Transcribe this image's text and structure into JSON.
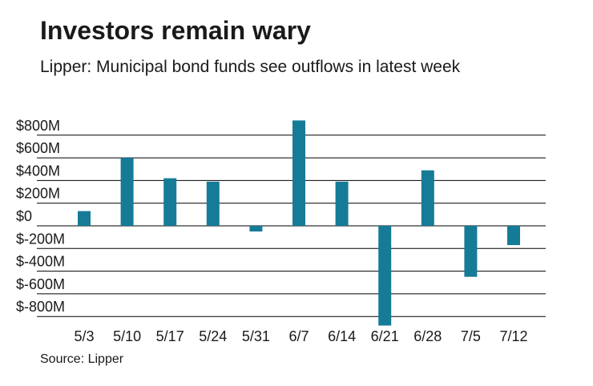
{
  "chart_data": {
    "type": "bar",
    "title": "Investors remain wary",
    "subtitle": "Lipper: Municipal bond funds see outflows in latest week",
    "source": "Source: Lipper",
    "categories": [
      "5/3",
      "5/10",
      "5/17",
      "5/24",
      "5/31",
      "6/7",
      "6/14",
      "6/21",
      "6/28",
      "7/5",
      "7/12"
    ],
    "values": [
      130,
      600,
      420,
      390,
      -50,
      930,
      390,
      -880,
      490,
      -450,
      -170
    ],
    "y_ticks": [
      800,
      600,
      400,
      200,
      0,
      -200,
      -400,
      -600,
      -800
    ],
    "y_tick_labels": [
      "$800M",
      "$600M",
      "$400M",
      "$200M",
      "$0",
      "$-200M",
      "$-400M",
      "$-600M",
      "$-800M"
    ],
    "ylim": [
      -900,
      950
    ],
    "xlabel": "",
    "ylabel": "",
    "grid": true,
    "bar_color": "#167b97",
    "grid_color": "#000000"
  }
}
